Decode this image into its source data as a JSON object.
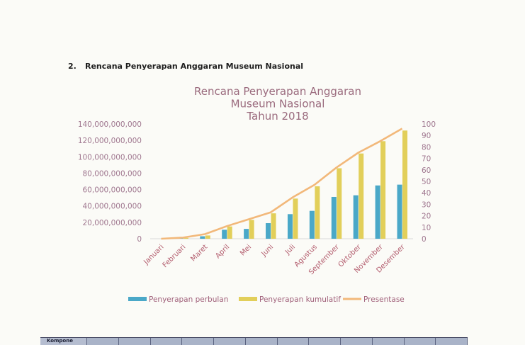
{
  "heading": {
    "number": "2.",
    "text": "Rencana Penyerapan Anggaran Museum Nasional"
  },
  "chart_data": {
    "type": "bar",
    "title": [
      "Rencana Penyerapan Anggaran",
      "Museum Nasional",
      "Tahun 2018"
    ],
    "categories": [
      "Januari",
      "Februari",
      "Maret",
      "April",
      "Mei",
      "Juni",
      "Juli",
      "Agustus",
      "September",
      "Oktober",
      "November",
      "Desember"
    ],
    "series": [
      {
        "name": "Penyerapan perbulan",
        "kind": "bar",
        "axis": "left",
        "color": "#4aa8c8",
        "values": [
          0,
          1000000000,
          3000000000,
          11000000000,
          12000000000,
          19000000000,
          30000000000,
          34000000000,
          51000000000,
          53000000000,
          65000000000,
          66000000000
        ]
      },
      {
        "name": "Penyerapan kumulatif",
        "kind": "bar",
        "axis": "left",
        "color": "#e2cf5a",
        "values": [
          0,
          1000000000,
          4000000000,
          15000000000,
          23000000000,
          31000000000,
          49000000000,
          64000000000,
          86000000000,
          104000000000,
          119000000000,
          132000000000
        ]
      },
      {
        "name": "Presentase",
        "kind": "line",
        "axis": "right",
        "color": "#f2b87a",
        "values": [
          0,
          1,
          4,
          11,
          17,
          23,
          36,
          47,
          62,
          75,
          85,
          96
        ]
      }
    ],
    "y_left": {
      "min": 0,
      "max": 140000000000,
      "step": 20000000000,
      "ticks": [
        "0",
        "20,000,000,000",
        "40,000,000,000",
        "60,000,000,000",
        "80,000,000,000",
        "100,000,000,000",
        "120,000,000,000",
        "140,000,000,000"
      ]
    },
    "y_right": {
      "min": 0,
      "max": 100,
      "step": 10,
      "ticks": [
        "0",
        "10",
        "20",
        "30",
        "40",
        "50",
        "60",
        "70",
        "80",
        "90",
        "100"
      ]
    },
    "grid": false,
    "legend_position": "bottom"
  },
  "table": {
    "first_header": "Kompone"
  }
}
